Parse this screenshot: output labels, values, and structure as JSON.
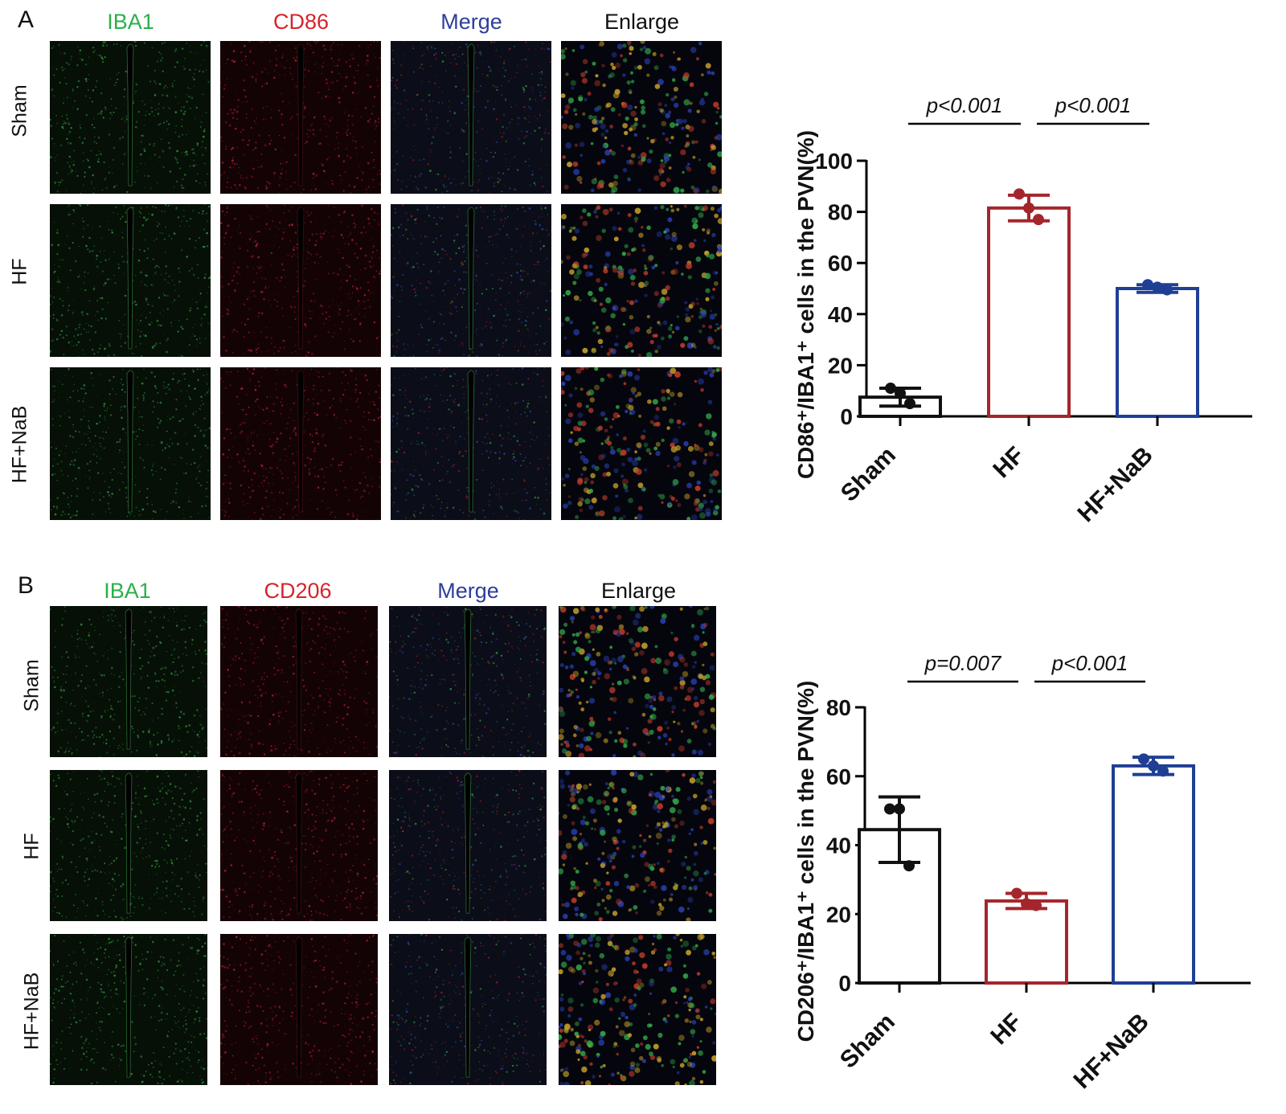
{
  "panelA": {
    "letter": "A",
    "columns": [
      {
        "label": "IBA1",
        "color": "#2bb04a"
      },
      {
        "label": "CD86",
        "color": "#d8232a"
      },
      {
        "label": "Merge",
        "color": "#2c3e9a"
      },
      {
        "label": "Enlarge",
        "color": "#111111"
      }
    ],
    "rows": [
      "Sham",
      "HF",
      "HF+NaB"
    ]
  },
  "panelB": {
    "letter": "B",
    "columns": [
      {
        "label": "IBA1",
        "color": "#2bb04a"
      },
      {
        "label": "CD206",
        "color": "#d8232a"
      },
      {
        "label": "Merge",
        "color": "#2c3e9a"
      },
      {
        "label": "Enlarge",
        "color": "#111111"
      }
    ],
    "rows": [
      "Sham",
      "HF",
      "HF+NaB"
    ]
  },
  "chart_data": [
    {
      "type": "bar",
      "categories": [
        "Sham",
        "HF",
        "HF+NaB"
      ],
      "colors": [
        "#111111",
        "#a4262c",
        "#1f3f95"
      ],
      "values": [
        7.5,
        81.5,
        50
      ],
      "errors": [
        3.5,
        5,
        1.5
      ],
      "points": [
        [
          11,
          9,
          5
        ],
        [
          87,
          81.5,
          77
        ],
        [
          51.5,
          50.5,
          49.5
        ]
      ],
      "ylim": [
        0,
        100
      ],
      "yticks": [
        0,
        20,
        40,
        60,
        80,
        100
      ],
      "ylabel": "CD86⁺/IBA1⁺ cells in the PVN(%)",
      "annotations": [
        {
          "text": "p<0.001",
          "from": "Sham",
          "to": "HF"
        },
        {
          "text": "p<0.001",
          "from": "HF",
          "to": "HF+NaB"
        }
      ]
    },
    {
      "type": "bar",
      "categories": [
        "Sham",
        "HF",
        "HF+NaB"
      ],
      "colors": [
        "#111111",
        "#a4262c",
        "#1f3f95"
      ],
      "values": [
        44.5,
        23.8,
        63
      ],
      "errors": [
        9.5,
        2.2,
        2.5
      ],
      "points": [
        [
          50.5,
          50.5,
          34
        ],
        [
          26,
          23,
          22.5
        ],
        [
          65,
          63,
          61.5
        ]
      ],
      "ylim": [
        0,
        80
      ],
      "yticks": [
        0,
        20,
        40,
        60,
        80
      ],
      "ylabel": "CD206⁺/IBA1⁺ cells in the PVN(%)",
      "annotations": [
        {
          "text": "p=0.007",
          "from": "Sham",
          "to": "HF"
        },
        {
          "text": "p<0.001",
          "from": "HF",
          "to": "HF+NaB"
        }
      ]
    }
  ]
}
